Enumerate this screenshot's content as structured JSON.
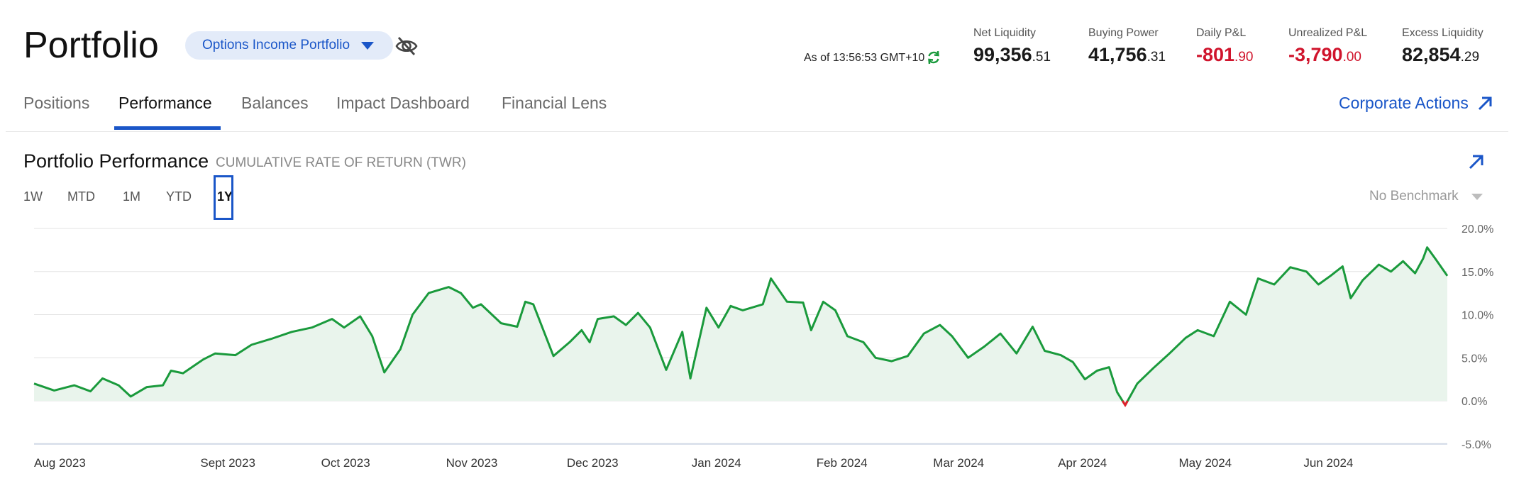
{
  "header": {
    "title": "Portfolio",
    "portfolio_selector": "Options Income Portfolio",
    "as_of": "As of 13:56:53 GMT+10"
  },
  "metrics": [
    {
      "label": "Net Liquidity",
      "int": "99,356",
      "dec": ".51",
      "negative": false
    },
    {
      "label": "Buying Power",
      "int": "41,756",
      "dec": ".31",
      "negative": false
    },
    {
      "label": "Daily P&L",
      "int": "-801",
      "dec": ".90",
      "negative": true
    },
    {
      "label": "Unrealized P&L",
      "int": "-3,790",
      "dec": ".00",
      "negative": true
    },
    {
      "label": "Excess Liquidity",
      "int": "82,854",
      "dec": ".29",
      "negative": false
    }
  ],
  "tabs": [
    "Positions",
    "Performance",
    "Balances",
    "Impact Dashboard",
    "Financial Lens"
  ],
  "active_tab": "Performance",
  "corporate_actions": "Corporate Actions",
  "section": {
    "title": "Portfolio Performance",
    "subtitle": "CUMULATIVE RATE OF RETURN (TWR)"
  },
  "ranges": [
    "1W",
    "MTD",
    "1M",
    "YTD",
    "1Y"
  ],
  "active_range": "1Y",
  "benchmark": "No Benchmark",
  "colors": {
    "accent": "#1a56c8",
    "line_positive": "#1a9a3c",
    "line_negative": "#e0202c",
    "area_fill": "#e9f4ec",
    "negative_value": "#d0142c"
  },
  "icons": [
    "caret-down-icon",
    "eye-off-icon",
    "refresh-icon",
    "external-link-icon",
    "expand-icon"
  ],
  "chart_data": {
    "type": "area",
    "ylabel": "",
    "xlabel": "",
    "ylim": [
      -5,
      20
    ],
    "y_ticks": [
      "20.0%",
      "15.0%",
      "10.0%",
      "5.0%",
      "0.0%",
      "-5.0%"
    ],
    "x_tick_labels": [
      "Aug 2023",
      "Sept 2023",
      "Oct 2023",
      "Nov 2023",
      "Dec 2023",
      "Jan 2024",
      "Feb 2024",
      "Mar 2024",
      "Apr 2024",
      "May 2024",
      "Jun 2024"
    ],
    "x_range": [
      "2023-07-15",
      "2024-06-30"
    ],
    "grid": true,
    "series": [
      {
        "points": [
          [
            "2023-07-15",
            2.0
          ],
          [
            "2023-07-20",
            1.2
          ],
          [
            "2023-07-25",
            1.8
          ],
          [
            "2023-07-29",
            1.1
          ],
          [
            "2023-08-01",
            2.6
          ],
          [
            "2023-08-05",
            1.8
          ],
          [
            "2023-08-08",
            0.5
          ],
          [
            "2023-08-12",
            1.6
          ],
          [
            "2023-08-16",
            1.8
          ],
          [
            "2023-08-18",
            3.5
          ],
          [
            "2023-08-21",
            3.2
          ],
          [
            "2023-08-26",
            4.8
          ],
          [
            "2023-08-29",
            5.5
          ],
          [
            "2023-09-03",
            5.3
          ],
          [
            "2023-09-07",
            6.5
          ],
          [
            "2023-09-12",
            7.2
          ],
          [
            "2023-09-17",
            8.0
          ],
          [
            "2023-09-22",
            8.5
          ],
          [
            "2023-09-27",
            9.5
          ],
          [
            "2023-09-30",
            8.5
          ],
          [
            "2023-10-04",
            9.8
          ],
          [
            "2023-10-07",
            7.5
          ],
          [
            "2023-10-10",
            3.3
          ],
          [
            "2023-10-14",
            6.0
          ],
          [
            "2023-10-17",
            10.0
          ],
          [
            "2023-10-21",
            12.5
          ],
          [
            "2023-10-26",
            13.2
          ],
          [
            "2023-10-29",
            12.5
          ],
          [
            "2023-11-01",
            10.8
          ],
          [
            "2023-11-03",
            11.2
          ],
          [
            "2023-11-08",
            9.0
          ],
          [
            "2023-11-12",
            8.6
          ],
          [
            "2023-11-14",
            11.5
          ],
          [
            "2023-11-16",
            11.2
          ],
          [
            "2023-11-21",
            5.2
          ],
          [
            "2023-11-25",
            6.8
          ],
          [
            "2023-11-28",
            8.2
          ],
          [
            "2023-11-30",
            6.8
          ],
          [
            "2023-12-02",
            9.5
          ],
          [
            "2023-12-06",
            9.8
          ],
          [
            "2023-12-09",
            8.8
          ],
          [
            "2023-12-12",
            10.2
          ],
          [
            "2023-12-15",
            8.5
          ],
          [
            "2023-12-19",
            3.6
          ],
          [
            "2023-12-23",
            8.0
          ],
          [
            "2023-12-25",
            2.6
          ],
          [
            "2023-12-29",
            10.8
          ],
          [
            "2024-01-01",
            8.5
          ],
          [
            "2024-01-04",
            11.0
          ],
          [
            "2024-01-07",
            10.5
          ],
          [
            "2024-01-12",
            11.2
          ],
          [
            "2024-01-14",
            14.2
          ],
          [
            "2024-01-18",
            11.5
          ],
          [
            "2024-01-22",
            11.4
          ],
          [
            "2024-01-24",
            8.2
          ],
          [
            "2024-01-27",
            11.5
          ],
          [
            "2024-01-30",
            10.5
          ],
          [
            "2024-02-02",
            7.5
          ],
          [
            "2024-02-06",
            6.8
          ],
          [
            "2024-02-09",
            5.0
          ],
          [
            "2024-02-13",
            4.6
          ],
          [
            "2024-02-17",
            5.2
          ],
          [
            "2024-02-21",
            7.8
          ],
          [
            "2024-02-25",
            8.8
          ],
          [
            "2024-02-28",
            7.5
          ],
          [
            "2024-03-03",
            5.0
          ],
          [
            "2024-03-07",
            6.3
          ],
          [
            "2024-03-11",
            7.8
          ],
          [
            "2024-03-15",
            5.5
          ],
          [
            "2024-03-19",
            8.6
          ],
          [
            "2024-03-22",
            5.8
          ],
          [
            "2024-03-26",
            5.3
          ],
          [
            "2024-03-29",
            4.5
          ],
          [
            "2024-04-01",
            2.5
          ],
          [
            "2024-04-04",
            3.5
          ],
          [
            "2024-04-07",
            3.9
          ],
          [
            "2024-04-09",
            1.0
          ],
          [
            "2024-04-11",
            -0.5
          ],
          [
            "2024-04-14",
            2.0
          ],
          [
            "2024-04-18",
            3.8
          ],
          [
            "2024-04-22",
            5.5
          ],
          [
            "2024-04-26",
            7.3
          ],
          [
            "2024-04-29",
            8.2
          ],
          [
            "2024-05-03",
            7.5
          ],
          [
            "2024-05-07",
            11.5
          ],
          [
            "2024-05-11",
            10.0
          ],
          [
            "2024-05-14",
            14.2
          ],
          [
            "2024-05-18",
            13.5
          ],
          [
            "2024-05-22",
            15.5
          ],
          [
            "2024-05-26",
            15.0
          ],
          [
            "2024-05-29",
            13.5
          ],
          [
            "2024-06-01",
            14.5
          ],
          [
            "2024-06-04",
            15.6
          ],
          [
            "2024-06-06",
            11.9
          ],
          [
            "2024-06-09",
            14.0
          ],
          [
            "2024-06-13",
            15.8
          ],
          [
            "2024-06-16",
            15.0
          ],
          [
            "2024-06-19",
            16.2
          ],
          [
            "2024-06-22",
            14.8
          ],
          [
            "2024-06-24",
            16.5
          ],
          [
            "2024-06-25",
            17.8
          ],
          [
            "2024-06-27",
            16.5
          ],
          [
            "2024-06-30",
            14.5
          ]
        ]
      }
    ]
  }
}
